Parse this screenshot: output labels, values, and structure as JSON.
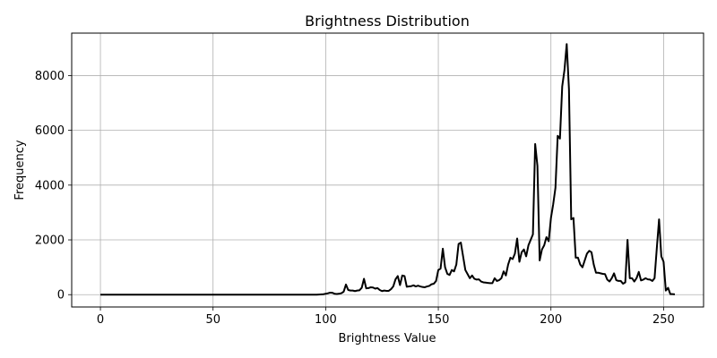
{
  "chart_data": {
    "type": "line",
    "title": "Brightness Distribution",
    "xlabel": "Brightness Value",
    "ylabel": "Frequency",
    "xlim": [
      -12.75,
      267.75
    ],
    "ylim": [
      -450,
      9550
    ],
    "grid": true,
    "line_color": "#000000",
    "x_ticks": [
      0,
      50,
      100,
      150,
      200,
      250
    ],
    "y_ticks": [
      0,
      2000,
      4000,
      6000,
      8000
    ],
    "series": [
      {
        "points": [
          [
            0,
            0
          ],
          [
            10,
            0
          ],
          [
            20,
            0
          ],
          [
            30,
            0
          ],
          [
            40,
            0
          ],
          [
            50,
            0
          ],
          [
            60,
            0
          ],
          [
            70,
            0
          ],
          [
            80,
            0
          ],
          [
            90,
            0
          ],
          [
            96,
            0
          ],
          [
            99,
            15
          ],
          [
            101,
            50
          ],
          [
            102,
            75
          ],
          [
            103,
            70
          ],
          [
            104,
            30
          ],
          [
            105,
            25
          ],
          [
            106,
            35
          ],
          [
            107,
            55
          ],
          [
            108,
            110
          ],
          [
            109,
            370
          ],
          [
            110,
            170
          ],
          [
            111,
            150
          ],
          [
            112,
            150
          ],
          [
            113,
            130
          ],
          [
            114,
            150
          ],
          [
            115,
            160
          ],
          [
            116,
            250
          ],
          [
            117,
            580
          ],
          [
            118,
            230
          ],
          [
            119,
            240
          ],
          [
            120,
            270
          ],
          [
            121,
            260
          ],
          [
            122,
            220
          ],
          [
            123,
            240
          ],
          [
            124,
            170
          ],
          [
            125,
            130
          ],
          [
            126,
            150
          ],
          [
            127,
            140
          ],
          [
            128,
            140
          ],
          [
            129,
            200
          ],
          [
            130,
            300
          ],
          [
            131,
            560
          ],
          [
            132,
            680
          ],
          [
            133,
            350
          ],
          [
            134,
            700
          ],
          [
            135,
            680
          ],
          [
            136,
            290
          ],
          [
            137,
            300
          ],
          [
            138,
            310
          ],
          [
            139,
            340
          ],
          [
            140,
            300
          ],
          [
            141,
            330
          ],
          [
            142,
            300
          ],
          [
            143,
            280
          ],
          [
            144,
            270
          ],
          [
            145,
            300
          ],
          [
            146,
            320
          ],
          [
            147,
            380
          ],
          [
            148,
            400
          ],
          [
            149,
            500
          ],
          [
            150,
            900
          ],
          [
            151,
            950
          ],
          [
            152,
            1680
          ],
          [
            153,
            1000
          ],
          [
            154,
            760
          ],
          [
            155,
            720
          ],
          [
            156,
            900
          ],
          [
            157,
            850
          ],
          [
            158,
            1100
          ],
          [
            159,
            1850
          ],
          [
            160,
            1900
          ],
          [
            161,
            1400
          ],
          [
            162,
            900
          ],
          [
            163,
            750
          ],
          [
            164,
            600
          ],
          [
            165,
            700
          ],
          [
            166,
            580
          ],
          [
            167,
            550
          ],
          [
            168,
            560
          ],
          [
            169,
            480
          ],
          [
            170,
            450
          ],
          [
            171,
            440
          ],
          [
            172,
            430
          ],
          [
            173,
            420
          ],
          [
            174,
            420
          ],
          [
            175,
            600
          ],
          [
            176,
            500
          ],
          [
            177,
            530
          ],
          [
            178,
            600
          ],
          [
            179,
            850
          ],
          [
            180,
            700
          ],
          [
            181,
            1100
          ],
          [
            182,
            1350
          ],
          [
            183,
            1300
          ],
          [
            184,
            1500
          ],
          [
            185,
            2050
          ],
          [
            186,
            1200
          ],
          [
            187,
            1550
          ],
          [
            188,
            1650
          ],
          [
            189,
            1400
          ],
          [
            190,
            1800
          ],
          [
            191,
            2000
          ],
          [
            192,
            2200
          ],
          [
            193,
            5500
          ],
          [
            194,
            4700
          ],
          [
            195,
            1250
          ],
          [
            196,
            1650
          ],
          [
            197,
            1800
          ],
          [
            198,
            2100
          ],
          [
            199,
            1950
          ],
          [
            200,
            2800
          ],
          [
            201,
            3300
          ],
          [
            202,
            3900
          ],
          [
            203,
            5800
          ],
          [
            204,
            5700
          ],
          [
            205,
            7600
          ],
          [
            206,
            8200
          ],
          [
            207,
            9150
          ],
          [
            208,
            7500
          ],
          [
            209,
            2750
          ],
          [
            210,
            2800
          ],
          [
            211,
            1350
          ],
          [
            212,
            1350
          ],
          [
            213,
            1100
          ],
          [
            214,
            1000
          ],
          [
            215,
            1250
          ],
          [
            216,
            1500
          ],
          [
            217,
            1600
          ],
          [
            218,
            1550
          ],
          [
            219,
            1100
          ],
          [
            220,
            800
          ],
          [
            221,
            800
          ],
          [
            222,
            780
          ],
          [
            223,
            760
          ],
          [
            224,
            750
          ],
          [
            225,
            550
          ],
          [
            226,
            480
          ],
          [
            227,
            600
          ],
          [
            228,
            780
          ],
          [
            229,
            530
          ],
          [
            230,
            500
          ],
          [
            231,
            500
          ],
          [
            232,
            400
          ],
          [
            233,
            450
          ],
          [
            234,
            2000
          ],
          [
            235,
            600
          ],
          [
            236,
            600
          ],
          [
            237,
            480
          ],
          [
            238,
            600
          ],
          [
            239,
            830
          ],
          [
            240,
            520
          ],
          [
            241,
            550
          ],
          [
            242,
            600
          ],
          [
            243,
            560
          ],
          [
            244,
            550
          ],
          [
            245,
            500
          ],
          [
            246,
            600
          ],
          [
            247,
            1700
          ],
          [
            248,
            2750
          ],
          [
            249,
            1400
          ],
          [
            250,
            1200
          ],
          [
            251,
            150
          ],
          [
            252,
            250
          ],
          [
            253,
            20
          ],
          [
            254,
            20
          ],
          [
            255,
            10
          ]
        ]
      }
    ]
  }
}
